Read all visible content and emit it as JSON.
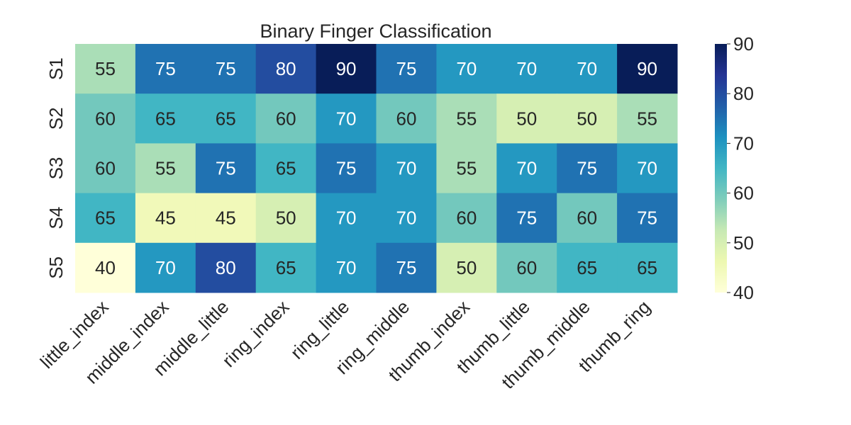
{
  "chart_data": {
    "type": "heatmap",
    "title": "Binary Finger Classification",
    "xlabel": "",
    "ylabel": "",
    "x_categories": [
      "little_index",
      "middle_index",
      "middle_little",
      "ring_index",
      "ring_little",
      "ring_middle",
      "thumb_index",
      "thumb_little",
      "thumb_middle",
      "thumb_ring"
    ],
    "y_categories": [
      "S1",
      "S2",
      "S3",
      "S4",
      "S5"
    ],
    "values": [
      [
        55,
        75,
        75,
        80,
        90,
        75,
        70,
        70,
        70,
        90
      ],
      [
        60,
        65,
        65,
        60,
        70,
        60,
        55,
        50,
        50,
        55
      ],
      [
        60,
        55,
        75,
        65,
        75,
        70,
        55,
        70,
        75,
        70
      ],
      [
        65,
        45,
        45,
        50,
        70,
        70,
        60,
        75,
        60,
        75
      ],
      [
        40,
        70,
        80,
        65,
        70,
        75,
        50,
        60,
        65,
        65
      ]
    ],
    "colorbar": {
      "range": [
        40,
        90
      ],
      "ticks": [
        40,
        50,
        60,
        70,
        80,
        90
      ],
      "colormap": "YlGnBu"
    },
    "annotated": true
  }
}
